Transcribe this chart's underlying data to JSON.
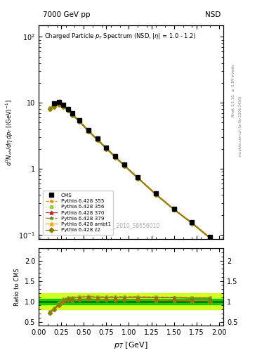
{
  "cms_pt": [
    0.175,
    0.225,
    0.275,
    0.325,
    0.375,
    0.45,
    0.55,
    0.65,
    0.75,
    0.85,
    0.95,
    1.1,
    1.3,
    1.5,
    1.7,
    1.9
  ],
  "cms_val": [
    9.8,
    10.2,
    9.3,
    8.1,
    7.0,
    5.5,
    3.9,
    2.85,
    2.1,
    1.55,
    1.15,
    0.75,
    0.42,
    0.25,
    0.155,
    0.092
  ],
  "mc_pt": [
    0.125,
    0.175,
    0.225,
    0.275,
    0.325,
    0.375,
    0.45,
    0.55,
    0.65,
    0.75,
    0.85,
    0.95,
    1.1,
    1.3,
    1.5,
    1.7,
    1.9
  ],
  "p355_val": [
    8.5,
    9.2,
    9.8,
    9.05,
    8.0,
    6.8,
    5.42,
    3.87,
    2.83,
    2.09,
    1.54,
    1.14,
    0.74,
    0.416,
    0.246,
    0.153,
    0.091
  ],
  "p356_val": [
    8.5,
    9.2,
    9.8,
    9.05,
    8.0,
    6.8,
    5.42,
    3.87,
    2.83,
    2.09,
    1.54,
    1.14,
    0.74,
    0.416,
    0.246,
    0.153,
    0.091
  ],
  "p370_val": [
    8.3,
    9.0,
    9.65,
    8.9,
    7.88,
    6.7,
    5.33,
    3.81,
    2.79,
    2.06,
    1.52,
    1.13,
    0.73,
    0.412,
    0.244,
    0.151,
    0.09
  ],
  "p379_val": [
    8.3,
    9.0,
    9.65,
    8.9,
    7.88,
    6.7,
    5.33,
    3.81,
    2.79,
    2.06,
    1.52,
    1.13,
    0.73,
    0.412,
    0.244,
    0.151,
    0.09
  ],
  "pambt_val": [
    8.0,
    8.7,
    9.3,
    8.6,
    7.6,
    6.5,
    5.18,
    3.7,
    2.72,
    2.01,
    1.48,
    1.1,
    0.715,
    0.403,
    0.239,
    0.148,
    0.088
  ],
  "pz2_val": [
    8.0,
    8.7,
    9.3,
    8.6,
    7.6,
    6.5,
    5.18,
    3.7,
    2.72,
    2.01,
    1.48,
    1.1,
    0.715,
    0.403,
    0.239,
    0.148,
    0.088
  ],
  "color_355": "#ff8c00",
  "color_356": "#9acd32",
  "color_370": "#cc2222",
  "color_379": "#6b8e23",
  "color_ambt": "#ffa500",
  "color_z2": "#8b7d00",
  "ls_355": "--",
  "ls_356": ":",
  "ls_370": "-",
  "ls_379": "-.",
  "ls_ambt": "-",
  "ls_z2": "-",
  "marker_355": "*",
  "marker_356": "s",
  "marker_370": "^",
  "marker_379": "*",
  "marker_ambt": "^",
  "marker_z2": "D",
  "band_inner_color": "#00cc00",
  "band_outer_color": "#ccff00",
  "band_inner_low": 0.93,
  "band_inner_high": 1.07,
  "band_outer_low": 0.8,
  "band_outer_high": 1.2,
  "xlim": [
    0.0,
    2.05
  ],
  "ylim_main": [
    0.085,
    150
  ],
  "ylim_ratio": [
    0.4,
    2.3
  ],
  "ratio_pt": [
    0.125,
    0.175,
    0.225,
    0.275,
    0.325,
    0.375,
    0.45,
    0.55,
    0.65,
    0.75,
    0.85,
    0.95,
    1.1,
    1.3,
    1.5,
    1.7,
    1.9
  ],
  "r355_val": [
    0.755,
    0.839,
    0.96,
    1.06,
    1.1,
    1.1,
    1.12,
    1.13,
    1.12,
    1.12,
    1.12,
    1.12,
    1.12,
    1.11,
    1.1,
    1.09,
    1.09
  ],
  "r356_val": [
    0.755,
    0.839,
    0.96,
    1.06,
    1.1,
    1.1,
    1.12,
    1.13,
    1.12,
    1.12,
    1.12,
    1.12,
    1.12,
    1.11,
    1.1,
    1.09,
    1.09
  ],
  "r370_val": [
    0.74,
    0.82,
    0.945,
    1.04,
    1.08,
    1.08,
    1.1,
    1.11,
    1.1,
    1.1,
    1.1,
    1.1,
    1.1,
    1.09,
    1.09,
    1.08,
    1.08
  ],
  "r379_val": [
    0.74,
    0.82,
    0.945,
    1.04,
    1.08,
    1.08,
    1.1,
    1.11,
    1.1,
    1.1,
    1.1,
    1.1,
    1.1,
    1.09,
    1.09,
    1.08,
    1.08
  ],
  "rambt_val": [
    0.72,
    0.8,
    0.91,
    1.0,
    1.04,
    1.03,
    1.05,
    1.06,
    1.05,
    1.04,
    1.04,
    1.04,
    1.04,
    1.03,
    1.02,
    1.01,
    1.0
  ],
  "rz2_val": [
    0.72,
    0.8,
    0.91,
    1.0,
    1.04,
    1.03,
    1.05,
    1.06,
    1.05,
    1.04,
    1.04,
    1.04,
    1.04,
    1.03,
    1.02,
    1.01,
    1.0
  ]
}
